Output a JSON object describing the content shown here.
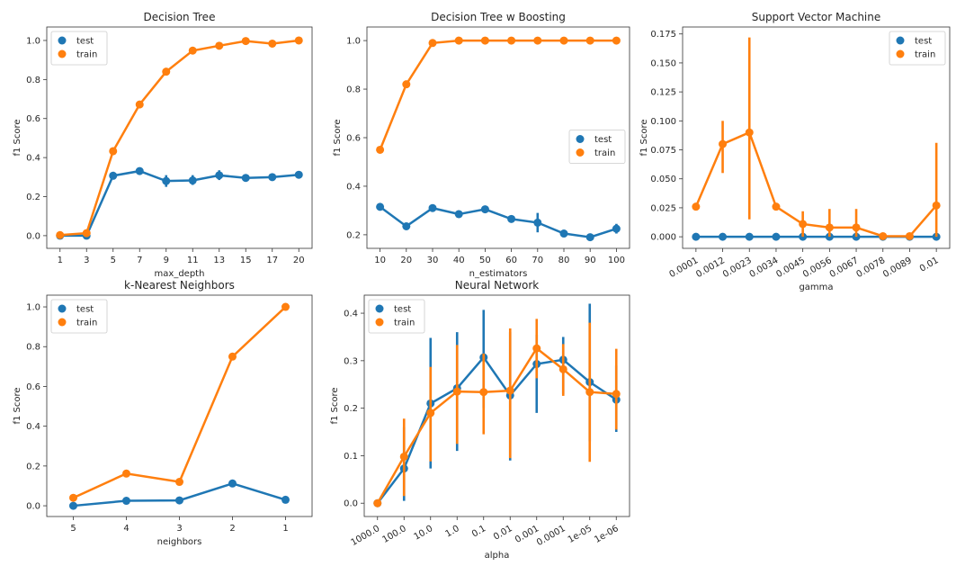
{
  "colors": {
    "test": "#1f77b4",
    "train": "#ff7f0e"
  },
  "chart_data": [
    {
      "type": "line",
      "title": "Decision Tree",
      "xlabel": "max_depth",
      "ylabel": "f1 Score",
      "categories": [
        "1",
        "3",
        "5",
        "7",
        "9",
        "11",
        "13",
        "15",
        "17",
        "20"
      ],
      "ylim": [
        -0.065,
        1.069
      ],
      "yticks": [
        0,
        0.2,
        0.4,
        0.6,
        0.8,
        1.0
      ],
      "ytick_labels": [
        "0.0",
        "0.2",
        "0.4",
        "0.6",
        "0.8",
        "1.0"
      ],
      "xtick_rotation": 0,
      "legend": "top-left",
      "series": [
        {
          "name": "test",
          "values": [
            0,
            0,
            0.307,
            0.331,
            0.28,
            0.283,
            0.309,
            0.296,
            0.3,
            0.312
          ],
          "ci": [
            null,
            null,
            null,
            null,
            [
              0.25,
              0.31
            ],
            [
              0.26,
              0.31
            ],
            [
              0.285,
              0.335
            ],
            null,
            null,
            [
              0.3,
              0.325
            ]
          ]
        },
        {
          "name": "train",
          "values": [
            0.003,
            0.013,
            0.433,
            0.672,
            0.84,
            0.948,
            0.973,
            0.997,
            0.984,
            1.0
          ],
          "ci": [
            null,
            null,
            null,
            null,
            null,
            null,
            null,
            null,
            null,
            null
          ]
        }
      ]
    },
    {
      "type": "line",
      "title": "Decision Tree w Boosting",
      "xlabel": "n_estimators",
      "ylabel": "f1 Score",
      "categories": [
        "10",
        "20",
        "30",
        "40",
        "50",
        "60",
        "70",
        "80",
        "90",
        "100"
      ],
      "ylim": [
        0.144,
        1.056
      ],
      "yticks": [
        0.2,
        0.4,
        0.6,
        0.8,
        1.0
      ],
      "ytick_labels": [
        "0.2",
        "0.4",
        "0.6",
        "0.8",
        "1.0"
      ],
      "xtick_rotation": 0,
      "legend": "center-right",
      "series": [
        {
          "name": "test",
          "values": [
            0.315,
            0.235,
            0.31,
            0.285,
            0.305,
            0.265,
            0.25,
            0.205,
            0.19,
            0.225
          ],
          "ci": [
            null,
            null,
            null,
            null,
            null,
            null,
            [
              0.21,
              0.29
            ],
            null,
            null,
            [
              0.205,
              0.245
            ]
          ]
        },
        {
          "name": "train",
          "values": [
            0.55,
            0.82,
            0.99,
            1.0,
            1.0,
            1.0,
            1.0,
            1.0,
            1.0,
            1.0
          ],
          "ci": [
            null,
            null,
            null,
            null,
            null,
            null,
            null,
            null,
            null,
            null
          ]
        }
      ]
    },
    {
      "type": "line",
      "title": "Support Vector Machine",
      "xlabel": "gamma",
      "ylabel": "f1 Score",
      "categories": [
        "0.0001",
        "0.0012",
        "0.0023",
        "0.0034",
        "0.0045",
        "0.0056",
        "0.0067",
        "0.0078",
        "0.0089",
        "0.01"
      ],
      "ylim": [
        -0.01,
        0.181
      ],
      "yticks": [
        0,
        0.025,
        0.05,
        0.075,
        0.1,
        0.125,
        0.15,
        0.175
      ],
      "ytick_labels": [
        "0.000",
        "0.025",
        "0.050",
        "0.075",
        "0.100",
        "0.125",
        "0.150",
        "0.175"
      ],
      "xtick_rotation": -30,
      "legend": "top-right",
      "series": [
        {
          "name": "test",
          "values": [
            0,
            0,
            0,
            0,
            0,
            0,
            0,
            0,
            0,
            0
          ],
          "ci": [
            null,
            null,
            null,
            null,
            null,
            null,
            null,
            null,
            null,
            null
          ]
        },
        {
          "name": "train",
          "values": [
            0.026,
            0.08,
            0.09,
            0.026,
            0.011,
            0.008,
            0.008,
            0.0005,
            0.0005,
            0.027
          ],
          "ci": [
            null,
            [
              0.055,
              0.1
            ],
            [
              0.015,
              0.172
            ],
            null,
            [
              0,
              0.022
            ],
            [
              0,
              0.024
            ],
            [
              0,
              0.024
            ],
            null,
            null,
            [
              0,
              0.081
            ]
          ]
        }
      ]
    },
    {
      "type": "line",
      "title": "k-Nearest Neighbors",
      "xlabel": "neighbors",
      "ylabel": "f1 Score",
      "categories": [
        "5",
        "4",
        "3",
        "2",
        "1"
      ],
      "ylim": [
        -0.054,
        1.059
      ],
      "yticks": [
        0,
        0.2,
        0.4,
        0.6,
        0.8,
        1.0
      ],
      "ytick_labels": [
        "0.0",
        "0.2",
        "0.4",
        "0.6",
        "0.8",
        "1.0"
      ],
      "xtick_rotation": 0,
      "legend": "top-left",
      "series": [
        {
          "name": "test",
          "values": [
            0,
            0.025,
            0.027,
            0.112,
            0.03
          ],
          "ci": [
            null,
            null,
            null,
            null,
            null
          ]
        },
        {
          "name": "train",
          "values": [
            0.04,
            0.162,
            0.12,
            0.75,
            1.0
          ],
          "ci": [
            null,
            null,
            null,
            null,
            null
          ]
        }
      ]
    },
    {
      "type": "line",
      "title": "Neural Network",
      "xlabel": "alpha",
      "ylabel": "f1 Score",
      "categories": [
        "1000.0",
        "100.0",
        "10.0",
        "1.0",
        "0.1",
        "0.01",
        "0.001",
        "0.0001",
        "1e-05",
        "1e-06"
      ],
      "ylim": [
        -0.028,
        0.438
      ],
      "yticks": [
        0,
        0.1,
        0.2,
        0.3,
        0.4
      ],
      "ytick_labels": [
        "0.0",
        "0.1",
        "0.2",
        "0.3",
        "0.4"
      ],
      "xtick_rotation": -30,
      "legend": "top-left",
      "series": [
        {
          "name": "test",
          "values": [
            0,
            0.073,
            0.21,
            0.242,
            0.307,
            0.227,
            0.293,
            0.302,
            0.255,
            0.218
          ],
          "ci": [
            null,
            [
              0.005,
              0.16
            ],
            [
              0.073,
              0.348
            ],
            [
              0.11,
              0.36
            ],
            [
              0.2,
              0.407
            ],
            [
              0.09,
              0.36
            ],
            [
              0.19,
              0.355
            ],
            [
              0.23,
              0.35
            ],
            [
              0.13,
              0.42
            ],
            [
              0.15,
              0.29
            ]
          ]
        },
        {
          "name": "train",
          "values": [
            0,
            0.098,
            0.19,
            0.235,
            0.234,
            0.237,
            0.326,
            0.282,
            0.234,
            0.23
          ],
          "ci": [
            null,
            [
              0.015,
              0.178
            ],
            [
              0.088,
              0.287
            ],
            [
              0.125,
              0.333
            ],
            [
              0.145,
              0.315
            ],
            [
              0.095,
              0.368
            ],
            [
              0.263,
              0.388
            ],
            [
              0.226,
              0.335
            ],
            [
              0.087,
              0.38
            ],
            [
              0.155,
              0.325
            ]
          ]
        }
      ]
    }
  ]
}
